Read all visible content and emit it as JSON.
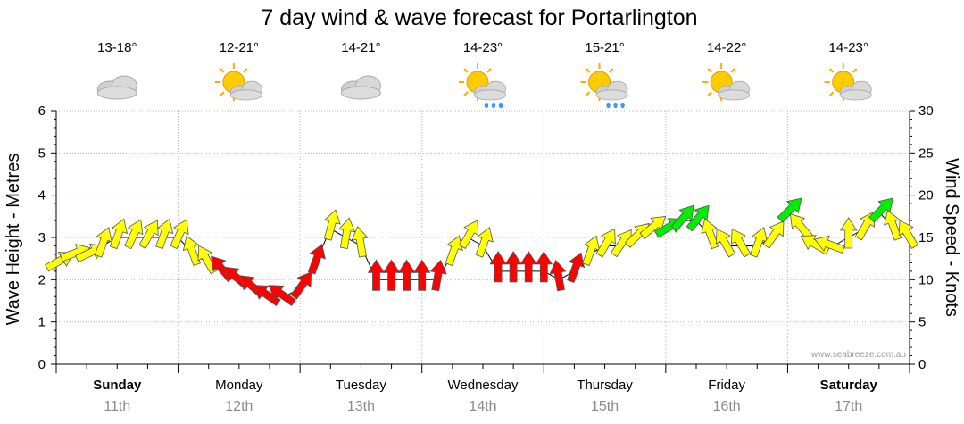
{
  "title": "7 day wind & wave forecast for Portarlington",
  "watermark": "www.seabreeze.com.au",
  "days": [
    {
      "name": "Sunday",
      "date": "11th",
      "temp": "13-18°",
      "icon": "cloudy-icon",
      "bold": true
    },
    {
      "name": "Monday",
      "date": "12th",
      "temp": "12-21°",
      "icon": "partly-sunny-icon",
      "bold": false
    },
    {
      "name": "Tuesday",
      "date": "13th",
      "temp": "14-21°",
      "icon": "cloudy-icon",
      "bold": false
    },
    {
      "name": "Wednesday",
      "date": "14th",
      "temp": "14-23°",
      "icon": "sun-cloud-rain-icon",
      "bold": false
    },
    {
      "name": "Thursday",
      "date": "15th",
      "temp": "15-21°",
      "icon": "sun-cloud-rain-icon",
      "bold": false
    },
    {
      "name": "Friday",
      "date": "16th",
      "temp": "14-22°",
      "icon": "partly-sunny-icon",
      "bold": false
    },
    {
      "name": "Saturday",
      "date": "17th",
      "temp": "14-23°",
      "icon": "partly-sunny-icon",
      "bold": true
    }
  ],
  "chart_data": {
    "type": "line",
    "title": "7 day wind & wave forecast for Portarlington",
    "ylabel_left": "Wave Height - Metres",
    "ylabel_right": "Wind Speed - Knots",
    "left_ticks": [
      "0",
      "1",
      "2",
      "3",
      "4",
      "5",
      "6"
    ],
    "right_ticks": [
      "0",
      "5",
      "10",
      "15",
      "20",
      "25",
      "30"
    ],
    "ylim_left": [
      0,
      6
    ],
    "ylim_right": [
      0,
      30
    ],
    "x_hours": [
      0,
      168
    ],
    "grid": true,
    "colors": {
      "yellow": "#ffff00",
      "red": "#ff0000",
      "green": "#00ee00",
      "outline": "#555555",
      "line": "#000000"
    },
    "series": [
      {
        "values": [
          [
            0,
            12,
            240,
            "yellow"
          ],
          [
            3,
            13,
            250,
            "yellow"
          ],
          [
            6,
            13,
            245,
            "yellow"
          ],
          [
            9,
            14,
            200,
            "yellow"
          ],
          [
            12,
            15,
            200,
            "yellow"
          ],
          [
            15,
            15,
            205,
            "yellow"
          ],
          [
            18,
            15,
            210,
            "yellow"
          ],
          [
            21,
            15,
            200,
            "yellow"
          ],
          [
            24,
            15,
            205,
            "yellow"
          ],
          [
            27,
            13,
            160,
            "yellow"
          ],
          [
            30,
            12,
            150,
            "yellow"
          ],
          [
            33,
            11,
            140,
            "red"
          ],
          [
            36,
            10,
            130,
            "red"
          ],
          [
            39,
            9,
            130,
            "red"
          ],
          [
            42,
            8,
            125,
            "red"
          ],
          [
            45,
            8,
            125,
            "red"
          ],
          [
            48,
            9,
            215,
            "red"
          ],
          [
            51,
            12,
            200,
            "red"
          ],
          [
            54,
            16,
            195,
            "yellow"
          ],
          [
            57,
            15,
            190,
            "yellow"
          ],
          [
            60,
            14,
            170,
            "yellow"
          ],
          [
            63,
            10,
            180,
            "red"
          ],
          [
            66,
            10,
            180,
            "red"
          ],
          [
            69,
            10,
            180,
            "red"
          ],
          [
            72,
            10,
            180,
            "red"
          ],
          [
            75,
            10,
            190,
            "red"
          ],
          [
            78,
            13,
            200,
            "yellow"
          ],
          [
            81,
            15,
            210,
            "yellow"
          ],
          [
            84,
            14,
            200,
            "yellow"
          ],
          [
            87,
            11,
            180,
            "red"
          ],
          [
            90,
            11,
            180,
            "red"
          ],
          [
            93,
            11,
            180,
            "red"
          ],
          [
            96,
            11,
            180,
            "red"
          ],
          [
            99,
            10,
            170,
            "red"
          ],
          [
            102,
            11,
            200,
            "red"
          ],
          [
            105,
            13,
            200,
            "yellow"
          ],
          [
            108,
            14,
            210,
            "yellow"
          ],
          [
            111,
            14,
            215,
            "yellow"
          ],
          [
            114,
            15,
            225,
            "yellow"
          ],
          [
            117,
            16,
            230,
            "yellow"
          ],
          [
            120,
            16,
            240,
            "green"
          ],
          [
            123,
            17,
            220,
            "green"
          ],
          [
            126,
            17,
            220,
            "green"
          ],
          [
            129,
            15,
            160,
            "yellow"
          ],
          [
            132,
            14,
            150,
            "yellow"
          ],
          [
            135,
            14,
            150,
            "yellow"
          ],
          [
            138,
            14,
            200,
            "yellow"
          ],
          [
            141,
            15,
            215,
            "yellow"
          ],
          [
            144,
            18,
            225,
            "green"
          ],
          [
            147,
            16,
            140,
            "yellow"
          ],
          [
            150,
            14,
            120,
            "yellow"
          ],
          [
            153,
            14,
            110,
            "yellow"
          ],
          [
            156,
            15,
            180,
            "yellow"
          ],
          [
            159,
            16,
            210,
            "yellow"
          ],
          [
            162,
            18,
            225,
            "green"
          ],
          [
            165,
            16,
            160,
            "yellow"
          ],
          [
            168,
            15,
            150,
            "yellow"
          ]
        ]
      }
    ]
  }
}
